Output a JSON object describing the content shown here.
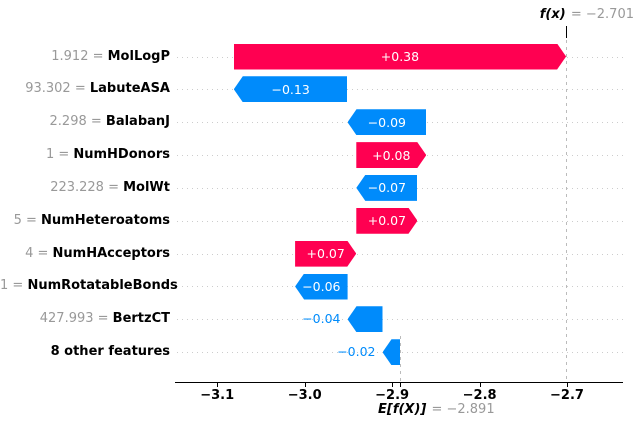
{
  "chart_data": {
    "type": "waterfall",
    "library_style": "shap-waterfall",
    "fx_label": "f(x)",
    "fx_value": " = −2.701",
    "fx": -2.701,
    "ef_label": "E[f(X)]",
    "ef_value": " = −2.891",
    "base_value": -2.891,
    "xlim": [
      -3.146,
      -2.636
    ],
    "x_ticks": [
      -3.1,
      -3.0,
      -2.9,
      -2.8,
      -2.7
    ],
    "x_tick_labels": [
      "−3.1",
      "−3.0",
      "−2.9",
      "−2.8",
      "−2.7"
    ],
    "grid": "dotted-row-guides",
    "legend": "none",
    "features": [
      {
        "value_label": "1.912 = ",
        "name": "MolLogP",
        "shap": 0.38,
        "shap_label": "+0.38"
      },
      {
        "value_label": "93.302 = ",
        "name": "LabuteASA",
        "shap": -0.13,
        "shap_label": "−0.13"
      },
      {
        "value_label": "2.298 = ",
        "name": "BalabanJ",
        "shap": -0.09,
        "shap_label": "−0.09"
      },
      {
        "value_label": "1 = ",
        "name": "NumHDonors",
        "shap": 0.08,
        "shap_label": "+0.08"
      },
      {
        "value_label": "223.228 = ",
        "name": "MolWt",
        "shap": -0.07,
        "shap_label": "−0.07"
      },
      {
        "value_label": "5 = ",
        "name": "NumHeteroatoms",
        "shap": 0.07,
        "shap_label": "+0.07"
      },
      {
        "value_label": "4 = ",
        "name": "NumHAcceptors",
        "shap": 0.07,
        "shap_label": "+0.07"
      },
      {
        "value_label": "1 = ",
        "name": "NumRotatableBonds",
        "shap": -0.06,
        "shap_label": "−0.06"
      },
      {
        "value_label": "427.993 = ",
        "name": "BertzCT",
        "shap": -0.04,
        "shap_label": "−0.04"
      },
      {
        "value_label": "",
        "name": "8 other features",
        "shap": -0.02,
        "shap_label": "−0.02"
      }
    ],
    "colors": {
      "positive": "#ff0051",
      "negative": "#008bfb",
      "muted_text": "#999999",
      "guideline": "#cccccc",
      "dashed_line": "#bbbbbb",
      "axis": "#000000"
    }
  }
}
